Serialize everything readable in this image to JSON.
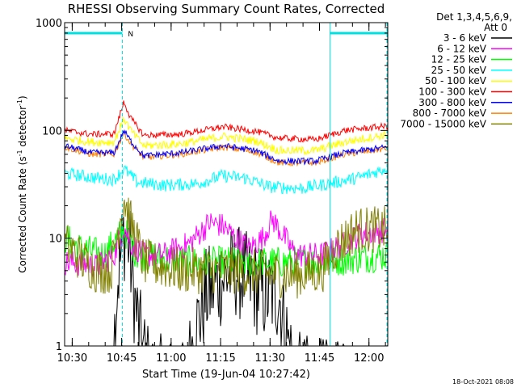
{
  "chart_data": {
    "type": "line",
    "title": "RHESSI Observing Summary Count Rates, Corrected",
    "xlabel": "Start Time (19-Jun-04 10:27:42)",
    "ylabel_parts": [
      "Corrected Count Rate (s",
      "-1",
      " detector",
      "-1",
      ")"
    ],
    "yscale": "log",
    "ylim": [
      1,
      1000
    ],
    "xlim_minutes": [
      0,
      98
    ],
    "y_ticks": [
      {
        "value": 1,
        "label": "1"
      },
      {
        "value": 10,
        "label": "10"
      },
      {
        "value": 100,
        "label": "100"
      },
      {
        "value": 1000,
        "label": "1000"
      }
    ],
    "x_ticks": [
      {
        "value": 2.3,
        "label": "10:30"
      },
      {
        "value": 17.3,
        "label": "10:45"
      },
      {
        "value": 32.3,
        "label": "11:00"
      },
      {
        "value": 47.3,
        "label": "11:15"
      },
      {
        "value": 62.3,
        "label": "11:30"
      },
      {
        "value": 77.3,
        "label": "11:45"
      },
      {
        "value": 92.3,
        "label": "12:00"
      }
    ],
    "legend": {
      "header": [
        "Det 1,3,4,5,6,9,",
        "Att 0"
      ],
      "placement": "right"
    },
    "series": [
      {
        "name": "3 - 6 keV",
        "color": "#000000",
        "baseline": 0.6,
        "noise": 0.45,
        "keys": [
          [
            0,
            0.3
          ],
          [
            14,
            0.3
          ],
          [
            16,
            4
          ],
          [
            18,
            11
          ],
          [
            19.5,
            9
          ],
          [
            21,
            3
          ],
          [
            23,
            1.2
          ],
          [
            26,
            0.5
          ],
          [
            36,
            0.4
          ],
          [
            40,
            1.5
          ],
          [
            43,
            3
          ],
          [
            47,
            4
          ],
          [
            52,
            5
          ],
          [
            56,
            4
          ],
          [
            60,
            3
          ],
          [
            65,
            3
          ],
          [
            70,
            0.5
          ],
          [
            98,
            0.3
          ]
        ]
      },
      {
        "name": "6 - 12 keV",
        "color": "#ff00ff",
        "baseline": 7,
        "noise": 0.12,
        "keys": [
          [
            0,
            6
          ],
          [
            10,
            5.5
          ],
          [
            15,
            7
          ],
          [
            18,
            13
          ],
          [
            20,
            9
          ],
          [
            24,
            7
          ],
          [
            30,
            7
          ],
          [
            38,
            9
          ],
          [
            44,
            14
          ],
          [
            48,
            13
          ],
          [
            52,
            10
          ],
          [
            56,
            8
          ],
          [
            60,
            10
          ],
          [
            63,
            15
          ],
          [
            66,
            11
          ],
          [
            70,
            7
          ],
          [
            78,
            7
          ],
          [
            85,
            9
          ],
          [
            90,
            11
          ],
          [
            98,
            12
          ]
        ]
      },
      {
        "name": "12 - 25 keV",
        "color": "#00ff00",
        "baseline": 7,
        "noise": 0.15,
        "keys": [
          [
            0,
            10
          ],
          [
            5,
            8
          ],
          [
            12,
            7
          ],
          [
            18,
            12
          ],
          [
            22,
            7
          ],
          [
            40,
            6
          ],
          [
            78,
            6
          ],
          [
            98,
            7
          ]
        ]
      },
      {
        "name": "25 - 50 keV",
        "color": "#00ffff",
        "baseline": 35,
        "noise": 0.06,
        "keys": [
          [
            0,
            40
          ],
          [
            10,
            36
          ],
          [
            15,
            35
          ],
          [
            18,
            44
          ],
          [
            22,
            33
          ],
          [
            30,
            31
          ],
          [
            40,
            32
          ],
          [
            48,
            38
          ],
          [
            55,
            36
          ],
          [
            62,
            30
          ],
          [
            72,
            29
          ],
          [
            80,
            32
          ],
          [
            90,
            37
          ],
          [
            98,
            45
          ]
        ]
      },
      {
        "name": "50 - 100 keV",
        "color": "#ffff00",
        "baseline": 80,
        "noise": 0.04,
        "keys": [
          [
            0,
            85
          ],
          [
            8,
            78
          ],
          [
            15,
            78
          ],
          [
            18,
            130
          ],
          [
            20,
            100
          ],
          [
            24,
            72
          ],
          [
            35,
            75
          ],
          [
            48,
            88
          ],
          [
            58,
            80
          ],
          [
            65,
            65
          ],
          [
            76,
            65
          ],
          [
            85,
            78
          ],
          [
            98,
            92
          ]
        ]
      },
      {
        "name": "100 - 300 keV",
        "color": "#ff0000",
        "baseline": 90,
        "noise": 0.03,
        "keys": [
          [
            0,
            100
          ],
          [
            8,
            92
          ],
          [
            15,
            93
          ],
          [
            18,
            185
          ],
          [
            20,
            130
          ],
          [
            24,
            90
          ],
          [
            35,
            92
          ],
          [
            48,
            108
          ],
          [
            58,
            98
          ],
          [
            65,
            85
          ],
          [
            76,
            82
          ],
          [
            85,
            100
          ],
          [
            98,
            110
          ]
        ]
      },
      {
        "name": "300 - 800 keV",
        "color": "#0000ff",
        "baseline": 70,
        "noise": 0.03,
        "keys": [
          [
            0,
            72
          ],
          [
            8,
            62
          ],
          [
            15,
            62
          ],
          [
            18,
            100
          ],
          [
            20,
            80
          ],
          [
            24,
            58
          ],
          [
            35,
            62
          ],
          [
            48,
            72
          ],
          [
            58,
            65
          ],
          [
            65,
            52
          ],
          [
            76,
            52
          ],
          [
            85,
            62
          ],
          [
            98,
            70
          ]
        ]
      },
      {
        "name": "800 - 7000 keV",
        "color": "#ff8000",
        "baseline": 65,
        "noise": 0.03,
        "keys": [
          [
            0,
            70
          ],
          [
            8,
            60
          ],
          [
            15,
            60
          ],
          [
            18,
            95
          ],
          [
            20,
            76
          ],
          [
            24,
            56
          ],
          [
            35,
            60
          ],
          [
            48,
            70
          ],
          [
            58,
            63
          ],
          [
            65,
            50
          ],
          [
            76,
            50
          ],
          [
            85,
            60
          ],
          [
            98,
            68
          ]
        ]
      },
      {
        "name": "7000 - 15000 keV",
        "color": "#808000",
        "baseline": 5,
        "noise": 0.22,
        "keys": [
          [
            0,
            9
          ],
          [
            6,
            6
          ],
          [
            10,
            5
          ],
          [
            14,
            5
          ],
          [
            18,
            24
          ],
          [
            20,
            14
          ],
          [
            24,
            6
          ],
          [
            35,
            5
          ],
          [
            50,
            5
          ],
          [
            70,
            4.5
          ],
          [
            78,
            5
          ],
          [
            82,
            8
          ],
          [
            88,
            12
          ],
          [
            98,
            12
          ]
        ]
      }
    ],
    "annotations": {
      "attenuator_marker": "N",
      "night_intervals_minutes": [
        [
          0,
          17.5
        ],
        [
          80.5,
          98
        ]
      ],
      "night_edges_minutes": [
        17.5,
        80.5,
        98
      ]
    }
  },
  "timestamp": "18-Oct-2021 08:08"
}
